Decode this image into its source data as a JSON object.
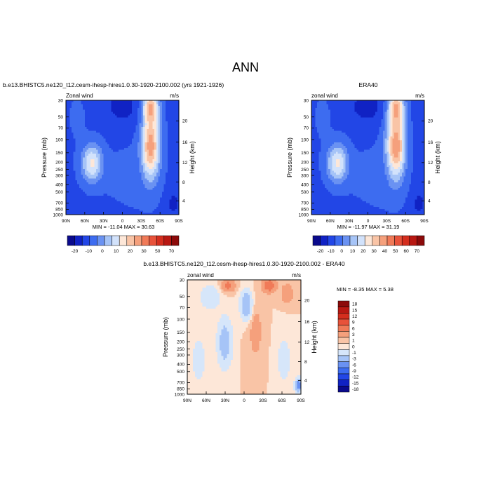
{
  "figure": {
    "title": "ANN"
  },
  "chart_data": [
    {
      "type": "heatmap",
      "id": "model",
      "case": "b.e13.BHISTC5.ne120_t12.cesm-ihesp-hires1.0.30-1920-2100.002 (yrs 1921-1926)",
      "variable": "Zonal wind",
      "units": "m/s",
      "xlabel": "",
      "ylabel": "Pressure (mb)",
      "y2label": "Height (km)",
      "x_ticks": [
        "90N",
        "60N",
        "30N",
        "0",
        "30S",
        "60S",
        "90S"
      ],
      "y_ticks": [
        "30",
        "50",
        "70",
        "100",
        "150",
        "200",
        "250",
        "300",
        "400",
        "500",
        "700",
        "850",
        "1000"
      ],
      "y2_ticks": [
        "4",
        "8",
        "12",
        "16",
        "20"
      ],
      "stats": {
        "min": -11.04,
        "max": 30.63,
        "label": "MIN = -11.04  MAX =  30.63"
      },
      "colorbar": {
        "orientation": "horizontal",
        "levels": [
          -20,
          -15,
          -10,
          -5,
          0,
          5,
          10,
          15,
          20,
          25,
          30,
          40,
          50,
          60,
          70
        ],
        "labels": [
          "-20",
          "-10",
          "0",
          "10",
          "20",
          "30",
          "50",
          "70"
        ],
        "colors": [
          "#0a0a8c",
          "#1022c4",
          "#2246e6",
          "#3d6cf0",
          "#6a92f2",
          "#a6c4f7",
          "#d2e2fb",
          "#fde7d8",
          "#f9c4a6",
          "#f5a07c",
          "#f07a58",
          "#e8523a",
          "#d42e1e",
          "#b81812",
          "#8c0a0a"
        ]
      }
    },
    {
      "type": "heatmap",
      "id": "obs",
      "case": "ERA40",
      "variable": "zonal wind",
      "units": "m/s",
      "xlabel": "",
      "ylabel": "Pressure (mb)",
      "y2label": "Height (km)",
      "x_ticks": [
        "90N",
        "60N",
        "30N",
        "0",
        "30S",
        "60S",
        "90S"
      ],
      "y_ticks": [
        "30",
        "50",
        "70",
        "100",
        "150",
        "200",
        "250",
        "300",
        "400",
        "500",
        "700",
        "850",
        "1000"
      ],
      "y2_ticks": [
        "4",
        "8",
        "12",
        "16",
        "20"
      ],
      "stats": {
        "min": -11.97,
        "max": 31.19,
        "label": "MIN = -11.97  MAX =  31.19"
      },
      "colorbar": {
        "orientation": "horizontal",
        "levels": [
          -20,
          -15,
          -10,
          -5,
          0,
          5,
          10,
          15,
          20,
          25,
          30,
          40,
          50,
          60,
          70
        ],
        "labels": [
          "-20",
          "-10",
          "0",
          "10",
          "20",
          "30",
          "40",
          "50",
          "60",
          "70"
        ],
        "colors": [
          "#0a0a8c",
          "#1022c4",
          "#2246e6",
          "#3d6cf0",
          "#6a92f2",
          "#a6c4f7",
          "#d2e2fb",
          "#fde7d8",
          "#f9c4a6",
          "#f5a07c",
          "#f07a58",
          "#e8523a",
          "#d42e1e",
          "#b81812",
          "#8c0a0a"
        ]
      }
    },
    {
      "type": "heatmap",
      "id": "diff",
      "case": "b.e13.BHISTC5.ne120_t12.cesm-ihesp-hires1.0.30-1920-2100.002 - ERA40",
      "variable": "zonal wind",
      "units": "m/s",
      "xlabel": "",
      "ylabel": "Pressure (mb)",
      "y2label": "Height (km)",
      "x_ticks": [
        "90N",
        "60N",
        "30N",
        "0",
        "30S",
        "60S",
        "90S"
      ],
      "y_ticks": [
        "30",
        "50",
        "70",
        "100",
        "150",
        "200",
        "250",
        "300",
        "400",
        "500",
        "700",
        "850",
        "1000"
      ],
      "y2_ticks": [
        "4",
        "8",
        "12",
        "16",
        "20"
      ],
      "stats": {
        "min": -8.35,
        "max": 5.38,
        "label": "MIN =  -8.35  MAX =  5.38"
      },
      "colorbar": {
        "orientation": "vertical",
        "labels": [
          "18",
          "15",
          "12",
          "9",
          "6",
          "3",
          "1",
          "0",
          "-1",
          "-3",
          "-6",
          "-9",
          "-12",
          "-15",
          "-18"
        ],
        "colors": [
          "#8c0a0a",
          "#b81812",
          "#d42e1e",
          "#e8523a",
          "#f07a58",
          "#f5a07c",
          "#f9c4a6",
          "#fde7d8",
          "#d6e6fa",
          "#a6c4f7",
          "#6a92f2",
          "#3d6cf0",
          "#2246e6",
          "#1022c4",
          "#0a0a8c"
        ]
      }
    }
  ]
}
